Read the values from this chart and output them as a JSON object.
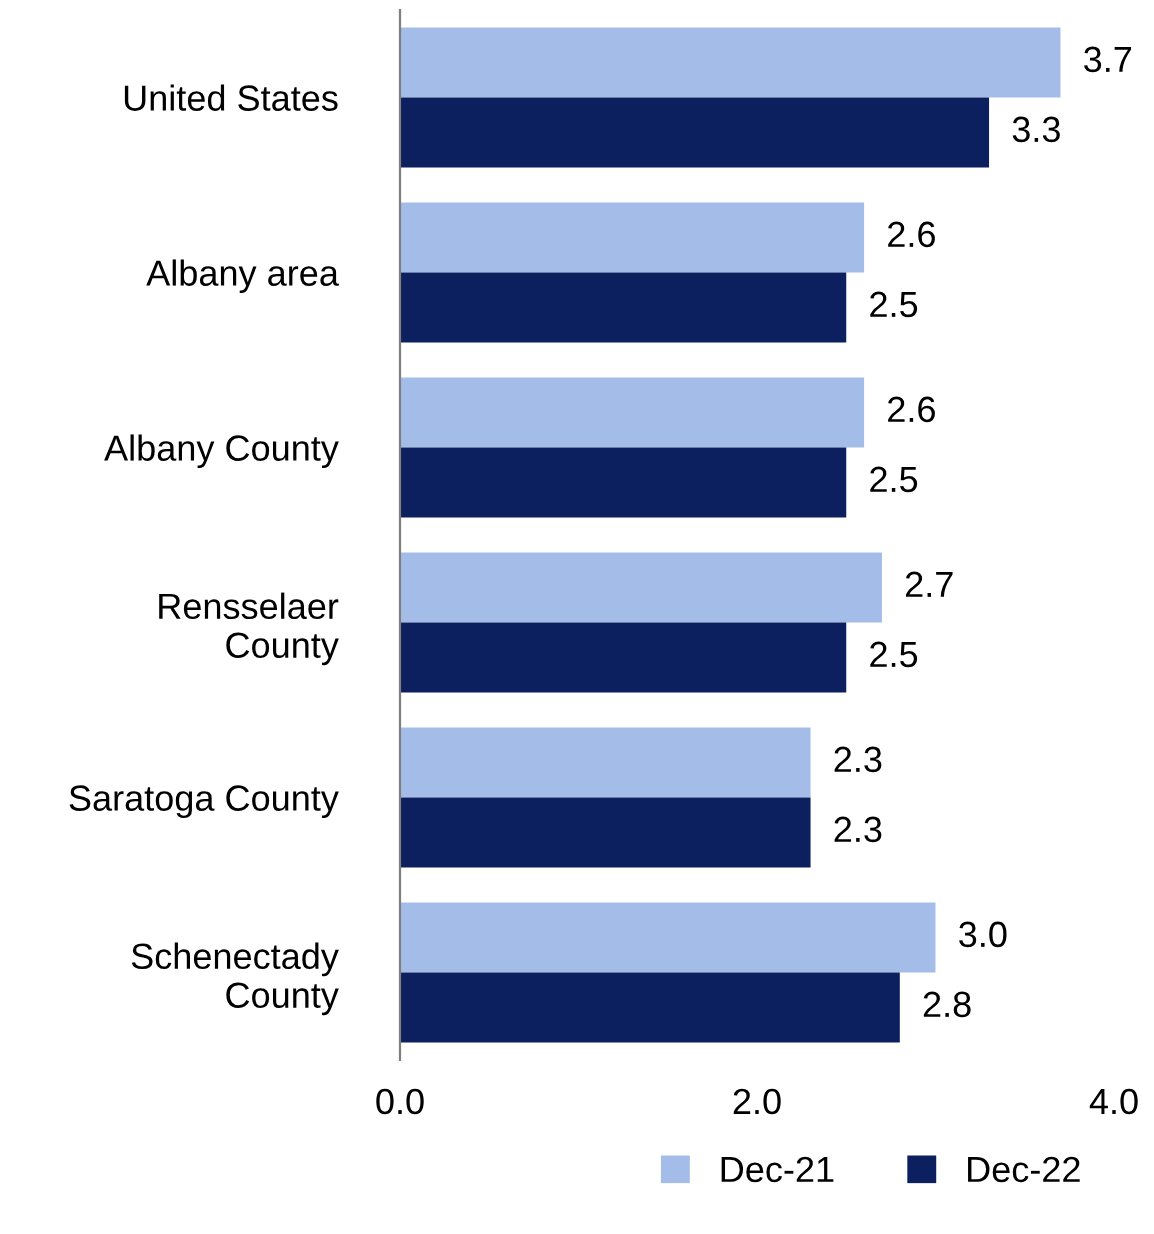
{
  "chart_data": {
    "type": "bar",
    "orientation": "horizontal",
    "categories": [
      "United States",
      "Albany area",
      "Albany County",
      "Rensselaer\nCounty",
      "Saratoga County",
      "Schenectady\nCounty"
    ],
    "series": [
      {
        "name": "Dec-21",
        "color": "#a3bde8",
        "values": [
          3.7,
          2.6,
          2.6,
          2.7,
          2.3,
          3.0
        ],
        "value_labels": [
          "3.7",
          "2.6",
          "2.6",
          "2.7",
          "2.3",
          "3.0"
        ]
      },
      {
        "name": "Dec-22",
        "color": "#0c1f5e",
        "values": [
          3.3,
          2.5,
          2.5,
          2.5,
          2.3,
          2.8
        ],
        "value_labels": [
          "3.3",
          "2.5",
          "2.5",
          "2.5",
          "2.3",
          "2.8"
        ]
      }
    ],
    "xlim": [
      0,
      4
    ],
    "xticks": [
      {
        "value": 0,
        "label": "0.0"
      },
      {
        "value": 2,
        "label": "2.0"
      },
      {
        "value": 4,
        "label": "4.0"
      }
    ],
    "grid": false,
    "legend": "bottom right"
  }
}
